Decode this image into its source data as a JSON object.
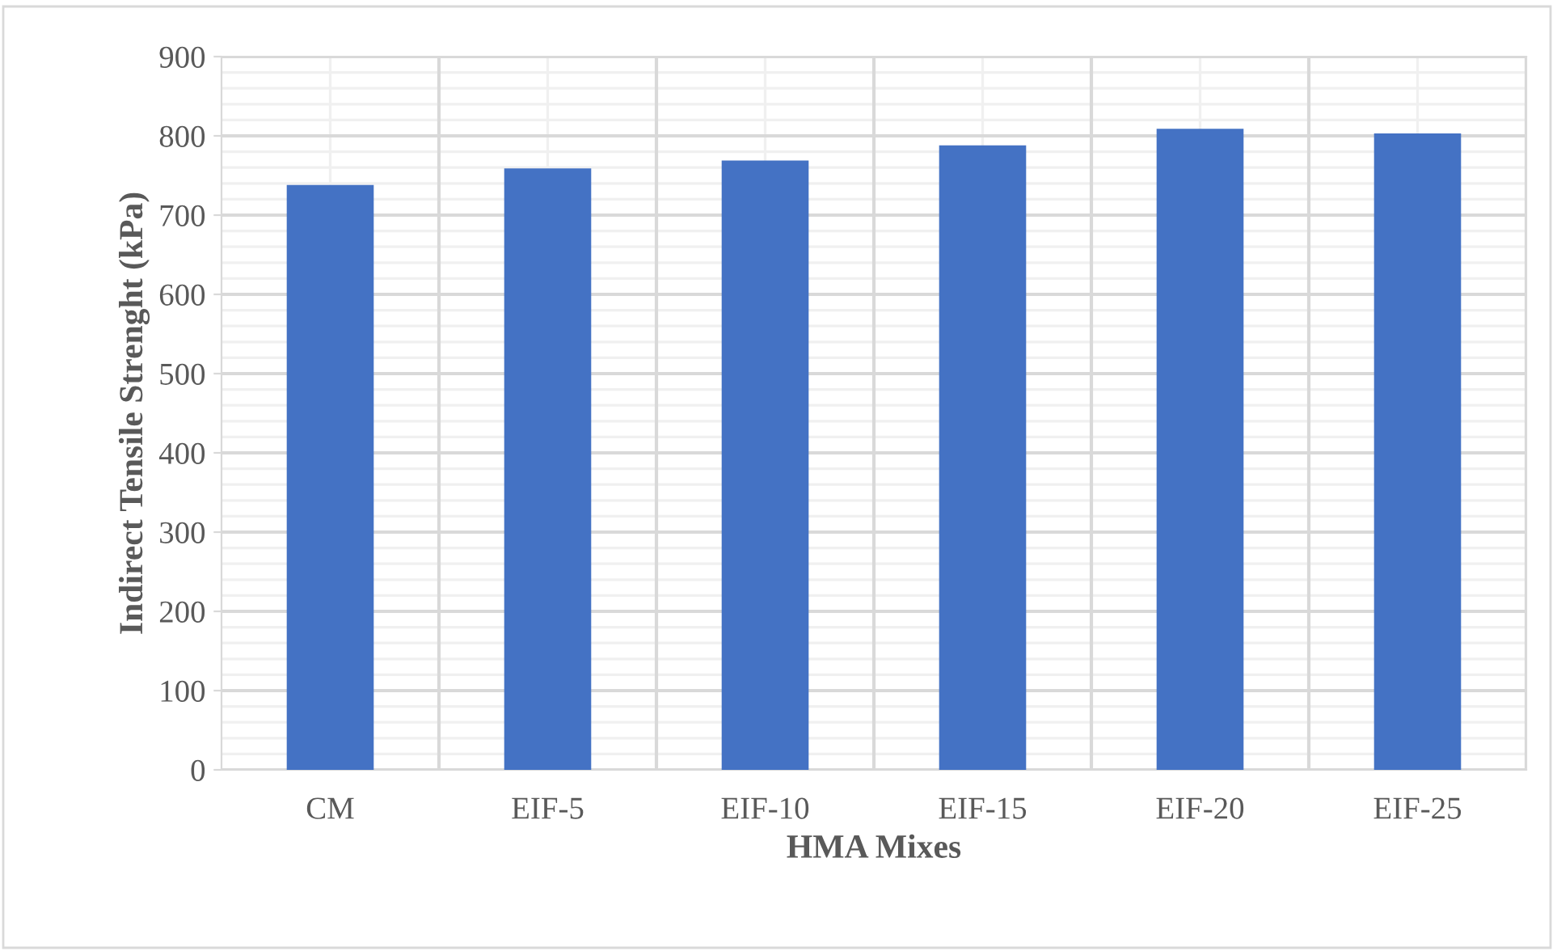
{
  "chart_data": {
    "type": "bar",
    "xlabel": "HMA Mixes",
    "ylabel": "Indirect Tensile Strenght (kPa)",
    "categories": [
      "CM",
      "EIF-5",
      "EIF-10",
      "EIF-15",
      "EIF-20",
      "EIF-25"
    ],
    "values": [
      738,
      759,
      769,
      788,
      809,
      803
    ],
    "color": "#4472c4",
    "ylim": [
      0,
      900
    ],
    "yticks": [
      0,
      100,
      200,
      300,
      400,
      500,
      600,
      700,
      800,
      900
    ],
    "grid": true
  }
}
